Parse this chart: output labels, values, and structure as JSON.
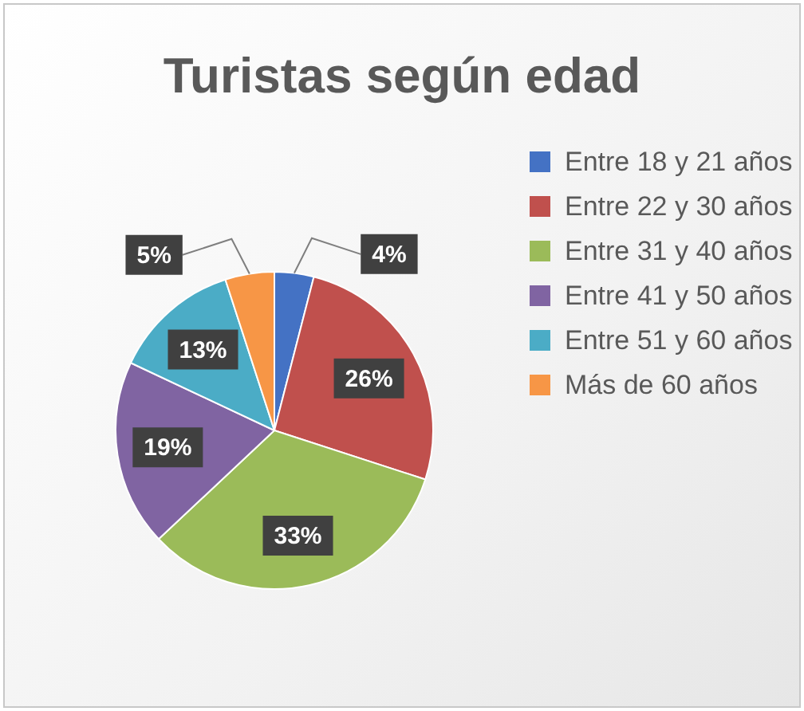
{
  "chart_data": {
    "type": "pie",
    "title": "Turistas según edad",
    "categories": [
      "Entre 18 y 21 años",
      "Entre 22 y 30 años",
      "Entre 31 y 40 años",
      "Entre 41 y 50 años",
      "Entre 51 y 60 años",
      "Más de 60 años"
    ],
    "values": [
      4,
      26,
      33,
      19,
      13,
      5
    ],
    "colors": [
      "#4472c4",
      "#c0504d",
      "#9bbb59",
      "#8064a2",
      "#4bacc6",
      "#f79646"
    ],
    "value_labels": [
      "4%",
      "26%",
      "33%",
      "19%",
      "13%",
      "5%"
    ],
    "legend": "right"
  }
}
